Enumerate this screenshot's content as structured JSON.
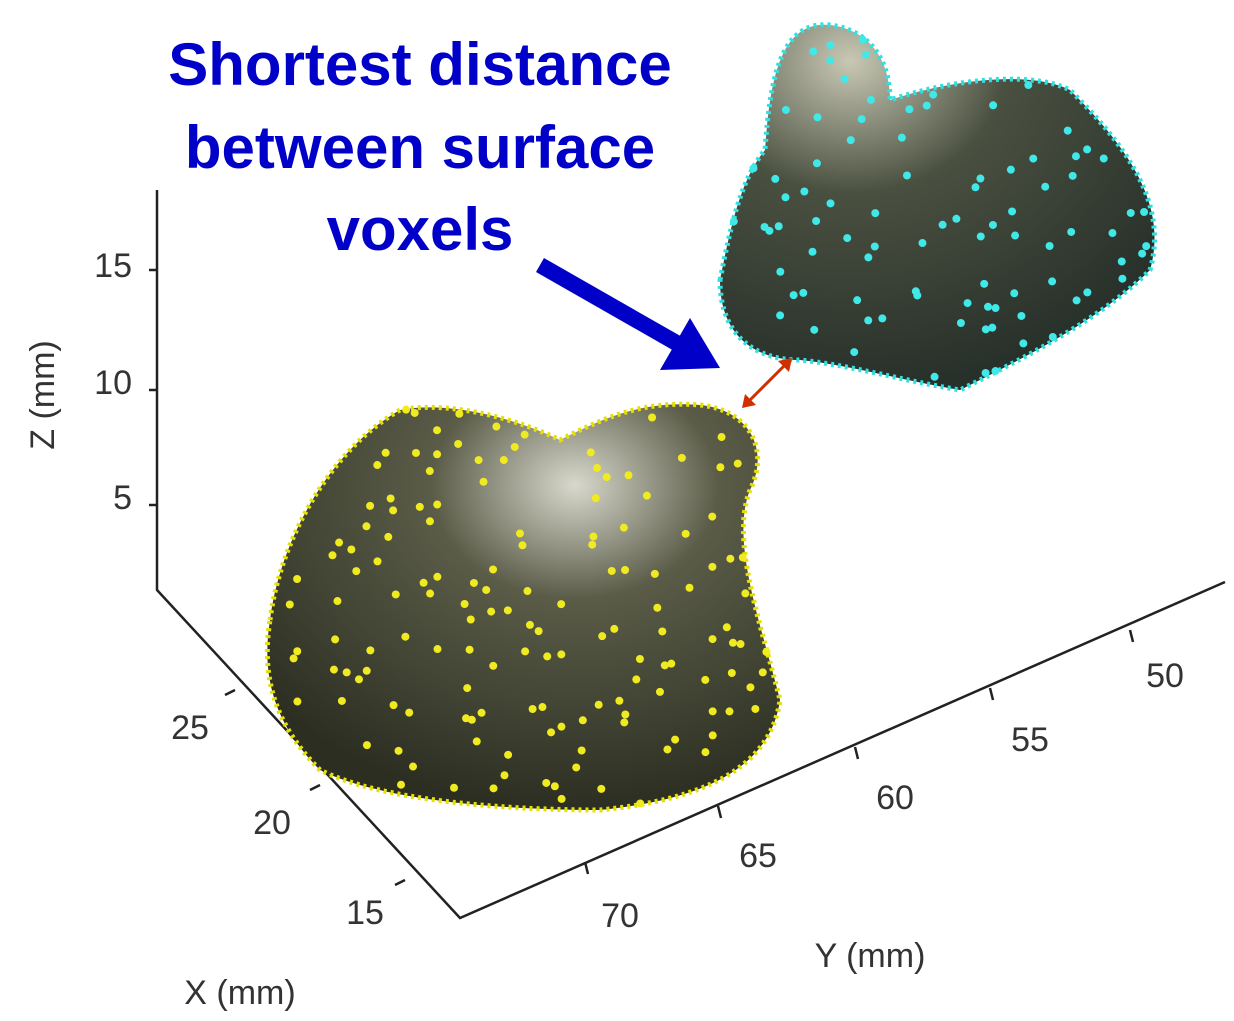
{
  "annotation": [
    "Shortest distance",
    "between surface",
    "voxels"
  ],
  "axes": {
    "z": {
      "label": "Z (mm)",
      "ticks": [
        15,
        10,
        5
      ]
    },
    "x": {
      "label": "X (mm)",
      "ticks": [
        25,
        20,
        15
      ]
    },
    "y": {
      "label": "Y (mm)",
      "ticks": [
        70,
        65,
        60,
        55,
        50
      ]
    }
  }
}
